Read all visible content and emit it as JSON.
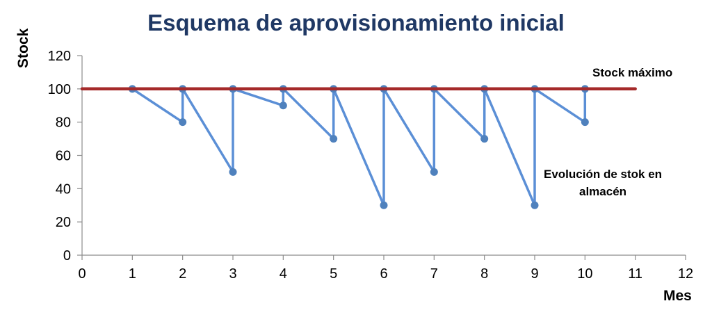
{
  "chart_data": {
    "type": "line",
    "title": "Esquema de aprovisionamiento inicial",
    "xlabel": "Mes",
    "ylabel": "Stock",
    "xlim": [
      0,
      12
    ],
    "ylim": [
      0,
      120
    ],
    "x_ticks": [
      0,
      1,
      2,
      3,
      4,
      5,
      6,
      7,
      8,
      9,
      10,
      11,
      12
    ],
    "y_ticks": [
      0,
      20,
      40,
      60,
      80,
      100,
      120
    ],
    "grid": false,
    "legend": "none",
    "series": [
      {
        "name": "Stock máximo",
        "color": "#A52A2A",
        "markers": false,
        "points": [
          [
            0,
            100
          ],
          [
            11,
            100
          ]
        ]
      },
      {
        "name": "Evolución de stok en almacén",
        "color": "#5B8FD6",
        "markers": true,
        "points": [
          [
            1,
            100
          ],
          [
            2,
            80
          ],
          [
            2,
            100
          ],
          [
            3,
            50
          ],
          [
            3,
            100
          ],
          [
            4,
            90
          ],
          [
            4,
            100
          ],
          [
            5,
            70
          ],
          [
            5,
            100
          ],
          [
            6,
            30
          ],
          [
            6,
            100
          ],
          [
            7,
            50
          ],
          [
            7,
            100
          ],
          [
            8,
            70
          ],
          [
            8,
            100
          ],
          [
            9,
            30
          ],
          [
            9,
            100
          ],
          [
            10,
            80
          ],
          [
            10,
            100
          ]
        ]
      }
    ],
    "annotations": [
      {
        "text": "Stock máximo"
      },
      {
        "text": "Evolución de stok en\nalmacén"
      }
    ]
  }
}
